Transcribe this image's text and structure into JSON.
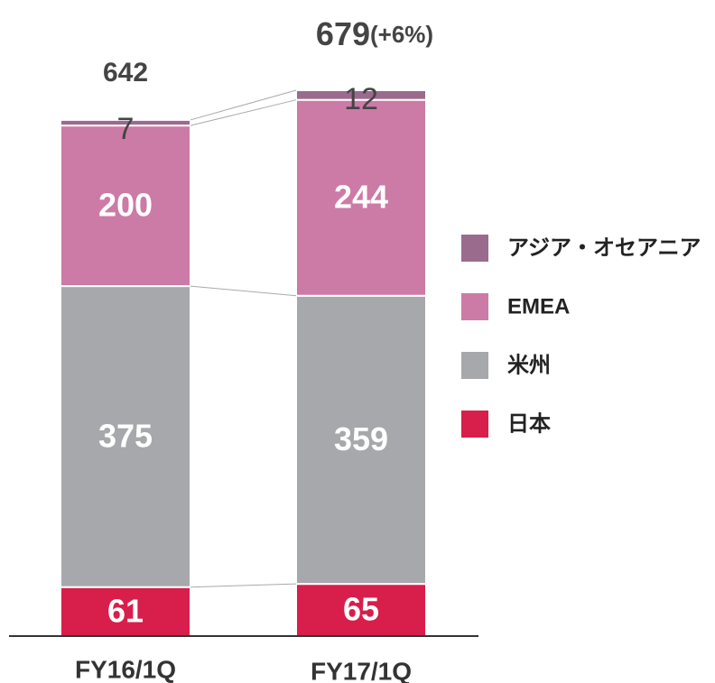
{
  "chart_data": {
    "type": "stacked_bar",
    "categories": [
      "FY16/1Q",
      "FY17/1Q"
    ],
    "series": [
      {
        "name": "日本",
        "color": "#d81e4a",
        "values": [
          61,
          65
        ]
      },
      {
        "name": "米州",
        "color": "#a7a8ac",
        "values": [
          375,
          359
        ]
      },
      {
        "name": "EMEA",
        "color": "#cc7aa6",
        "values": [
          200,
          244
        ]
      },
      {
        "name": "アジア・オセアニア",
        "color": "#9b6b8e",
        "values": [
          7,
          12
        ]
      }
    ],
    "totals": [
      642,
      679
    ],
    "change_label": "(+6%)"
  }
}
